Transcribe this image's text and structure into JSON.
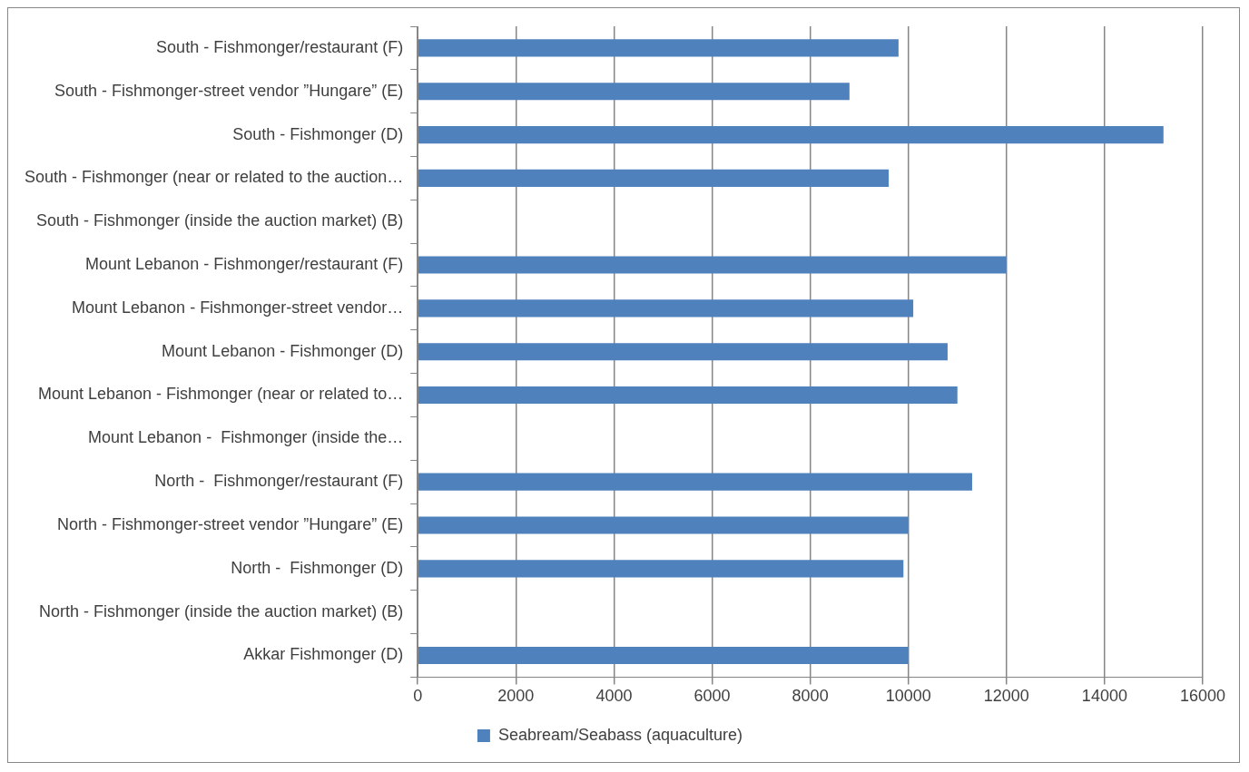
{
  "chart_data": {
    "type": "bar",
    "orientation": "horizontal",
    "categories": [
      "South - Fishmonger/restaurant (F)",
      "South - Fishmonger-street vendor ”Hungare” (E)",
      "South - Fishmonger (D)",
      "South - Fishmonger (near or related to the auction…",
      "South - Fishmonger (inside the auction market) (B)",
      "Mount Lebanon - Fishmonger/restaurant (F)",
      "Mount Lebanon - Fishmonger-street vendor…",
      "Mount Lebanon - Fishmonger (D)",
      "Mount Lebanon - Fishmonger (near or related to…",
      "Mount Lebanon -  Fishmonger (inside the…",
      "North -  Fishmonger/restaurant (F)",
      "North - Fishmonger-street vendor ”Hungare” (E)",
      "North -  Fishmonger (D)",
      "North - Fishmonger (inside the auction market) (B)",
      "Akkar Fishmonger (D)"
    ],
    "series": [
      {
        "name": "Seabream/Seabass (aquaculture)",
        "color": "#4f81bd",
        "values": [
          9800,
          8800,
          15200,
          9600,
          null,
          12000,
          10100,
          10800,
          11000,
          null,
          11300,
          10000,
          9900,
          null,
          10000
        ]
      }
    ],
    "xlim": [
      0,
      16000
    ],
    "xticks": [
      0,
      2000,
      4000,
      6000,
      8000,
      10000,
      12000,
      14000,
      16000
    ],
    "grid": "x",
    "legend": "bottom"
  }
}
